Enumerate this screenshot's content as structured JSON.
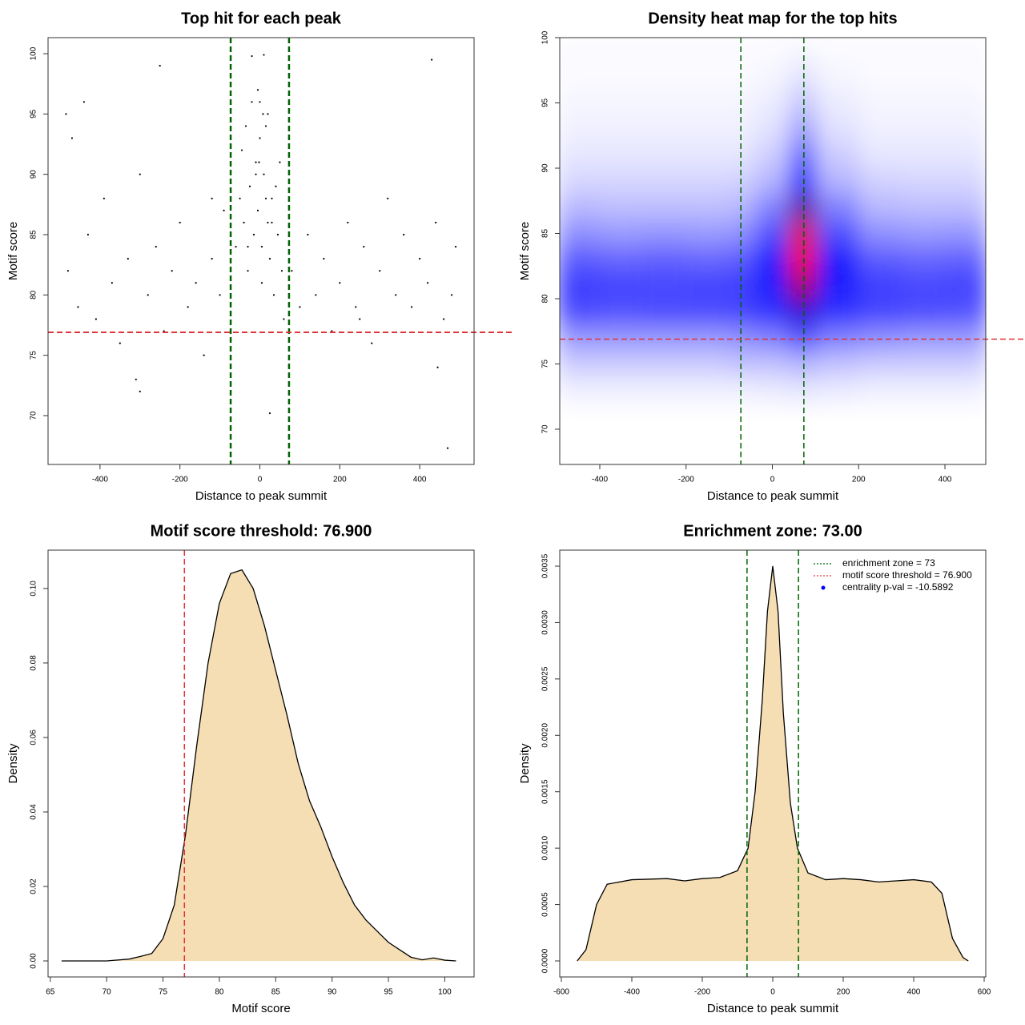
{
  "chart_data": [
    {
      "type": "scatter",
      "title": "Top hit for each peak",
      "xlabel": "Distance to peak summit",
      "ylabel": "Motif score",
      "xlim": [
        -530,
        536
      ],
      "ylim": [
        65.95,
        101.33
      ],
      "xticks": [
        -400,
        -200,
        0,
        200,
        400
      ],
      "yticks": [
        70,
        75,
        80,
        85,
        90,
        95,
        100
      ],
      "color": "#000000",
      "vlines": [
        -73,
        73
      ],
      "vline_color": "#006400",
      "hlines": [
        76.9
      ],
      "hline_color": "#e0333a",
      "x": [
        -480,
        -455,
        -430,
        -410,
        -390,
        -370,
        -350,
        -330,
        -300,
        -280,
        -260,
        -240,
        -220,
        -200,
        -180,
        -160,
        -140,
        -120,
        -100,
        -90,
        -60,
        -50,
        -45,
        -40,
        -35,
        -30,
        -25,
        -20,
        -15,
        -10,
        -5,
        0,
        5,
        10,
        15,
        20,
        25,
        30,
        35,
        40,
        45,
        50,
        55,
        60,
        -20,
        10,
        -5,
        15,
        0,
        -10,
        20,
        -30,
        30,
        5,
        80,
        100,
        120,
        140,
        160,
        180,
        200,
        220,
        240,
        260,
        280,
        300,
        320,
        340,
        360,
        380,
        400,
        420,
        440,
        460,
        480,
        490,
        -485,
        -470,
        -300,
        -250,
        430,
        445,
        -310,
        25,
        -2,
        8,
        -440,
        -120,
        250,
        470
      ],
      "y": [
        82,
        79,
        85,
        78,
        88,
        81,
        76,
        83,
        90,
        80,
        84,
        77,
        82,
        86,
        79,
        81,
        75,
        83,
        80,
        87,
        84,
        88,
        92,
        86,
        94,
        82,
        89,
        96,
        85,
        91,
        87,
        93,
        84,
        90,
        88,
        95,
        83,
        86,
        80,
        89,
        85,
        91,
        82,
        78,
        99.8,
        99.9,
        97,
        94,
        96,
        90,
        86,
        84,
        88,
        81,
        82,
        79,
        85,
        80,
        83,
        77,
        81,
        86,
        79,
        84,
        76,
        82,
        88,
        80,
        85,
        79,
        83,
        81,
        86,
        78,
        80,
        84,
        95,
        93,
        72,
        99,
        99.5,
        74,
        73,
        70.2,
        91,
        95,
        96,
        88,
        78,
        67.3
      ]
    },
    {
      "type": "heatmap",
      "title": "Density heat map for the top hits",
      "xlabel": "Distance to peak summit",
      "ylabel": "Motif score",
      "xlim": [
        -492.8,
        494.6
      ],
      "ylim": [
        67.3,
        100
      ],
      "xticks": [
        -400,
        -200,
        0,
        200,
        400
      ],
      "yticks": [
        70,
        75,
        80,
        85,
        90,
        95,
        100
      ],
      "vlines": [
        -73,
        73
      ],
      "vline_color": "#006400",
      "hlines": [
        76.9
      ],
      "hline_color": "#e0333a",
      "colormap": [
        "#ffffff",
        "#0000ff",
        "#ff0000"
      ],
      "zlim": [
        0,
        1
      ],
      "xbins": [
        -500,
        -400,
        -300,
        -200,
        -100,
        -40,
        40,
        100,
        200,
        300,
        400,
        500
      ],
      "ybins": [
        72,
        74,
        76,
        78,
        80,
        82,
        84,
        86,
        88,
        90,
        92,
        94,
        96,
        98,
        100
      ],
      "z": [
        [
          0.03,
          0.03,
          0.03,
          0.03,
          0.03,
          0.04,
          0.05,
          0.04,
          0.03,
          0.03,
          0.03
        ],
        [
          0.1,
          0.1,
          0.1,
          0.1,
          0.12,
          0.12,
          0.15,
          0.12,
          0.1,
          0.1,
          0.1
        ],
        [
          0.2,
          0.2,
          0.2,
          0.2,
          0.22,
          0.25,
          0.35,
          0.25,
          0.22,
          0.2,
          0.2
        ],
        [
          0.35,
          0.34,
          0.35,
          0.35,
          0.36,
          0.4,
          0.6,
          0.4,
          0.36,
          0.35,
          0.34
        ],
        [
          0.38,
          0.37,
          0.36,
          0.37,
          0.38,
          0.45,
          0.85,
          0.45,
          0.38,
          0.36,
          0.37
        ],
        [
          0.32,
          0.3,
          0.31,
          0.3,
          0.32,
          0.45,
          1.0,
          0.45,
          0.32,
          0.3,
          0.31
        ],
        [
          0.22,
          0.2,
          0.21,
          0.2,
          0.22,
          0.35,
          0.95,
          0.35,
          0.22,
          0.2,
          0.21
        ],
        [
          0.14,
          0.13,
          0.13,
          0.13,
          0.14,
          0.25,
          0.7,
          0.25,
          0.14,
          0.13,
          0.13
        ],
        [
          0.08,
          0.08,
          0.08,
          0.08,
          0.09,
          0.15,
          0.5,
          0.15,
          0.09,
          0.08,
          0.08
        ],
        [
          0.05,
          0.05,
          0.05,
          0.05,
          0.05,
          0.1,
          0.32,
          0.1,
          0.05,
          0.05,
          0.05
        ],
        [
          0.03,
          0.03,
          0.03,
          0.03,
          0.03,
          0.06,
          0.2,
          0.06,
          0.03,
          0.03,
          0.03
        ],
        [
          0.02,
          0.02,
          0.02,
          0.02,
          0.02,
          0.04,
          0.12,
          0.04,
          0.02,
          0.02,
          0.02
        ],
        [
          0.01,
          0.01,
          0.01,
          0.01,
          0.01,
          0.02,
          0.06,
          0.02,
          0.01,
          0.01,
          0.01
        ],
        [
          0.01,
          0.01,
          0.01,
          0.01,
          0.01,
          0.01,
          0.02,
          0.01,
          0.01,
          0.01,
          0.01
        ]
      ]
    },
    {
      "type": "area",
      "title": "Motif score threshold: 76.900",
      "xlabel": "Motif score",
      "ylabel": "Density",
      "xlim": [
        64.8,
        102.6
      ],
      "ylim": [
        -0.0043,
        0.1103
      ],
      "xticks": [
        65,
        70,
        75,
        80,
        85,
        90,
        95,
        100
      ],
      "yticks": [
        {
          "value": 0,
          "label": "0.00"
        },
        0.02,
        0.04,
        0.06,
        0.08,
        {
          "value": 0.1,
          "label": "0.10"
        }
      ],
      "color": "#f5deb3",
      "line_color": "#000000",
      "vlines": [
        76.9
      ],
      "vline_color": "#e0333a",
      "x": [
        66,
        70,
        72,
        73,
        74,
        75,
        76,
        77,
        78,
        79,
        80,
        81,
        82,
        83,
        84,
        85,
        86,
        87,
        88,
        89,
        90,
        91,
        92,
        93,
        94,
        95,
        96,
        97,
        98,
        99,
        100,
        101
      ],
      "y": [
        0,
        0,
        0.0005,
        0.0012,
        0.002,
        0.006,
        0.015,
        0.034,
        0.058,
        0.08,
        0.096,
        0.104,
        0.105,
        0.1,
        0.09,
        0.078,
        0.066,
        0.053,
        0.043,
        0.036,
        0.028,
        0.021,
        0.015,
        0.011,
        0.008,
        0.005,
        0.003,
        0.001,
        0.0003,
        0.0008,
        0.0002,
        0
      ]
    },
    {
      "type": "area",
      "title": "Enrichment zone: 73.00",
      "xlabel": "Distance to peak summit",
      "ylabel": "Density",
      "xlim": [
        -604.5,
        604.5
      ],
      "ylim": [
        -0.000142,
        0.003642
      ],
      "xticks": [
        -600,
        -400,
        -200,
        0,
        200,
        400,
        600
      ],
      "yticks": [
        {
          "value": 0,
          "label": "0.0000"
        },
        0.0005,
        {
          "value": 0.001,
          "label": "0.0010"
        },
        0.0015,
        {
          "value": 0.002,
          "label": "0.0020"
        },
        0.0025,
        {
          "value": 0.003,
          "label": "0.0030"
        },
        0.0035
      ],
      "color": "#f5deb3",
      "line_color": "#000000",
      "vlines": [
        -73,
        73
      ],
      "vline_color": "#006400",
      "x": [
        -555,
        -530,
        -500,
        -470,
        -400,
        -300,
        -250,
        -200,
        -150,
        -100,
        -70,
        -50,
        -30,
        -15,
        0,
        15,
        30,
        50,
        70,
        100,
        150,
        200,
        250,
        300,
        350,
        400,
        450,
        480,
        510,
        540,
        555
      ],
      "y": [
        0,
        0.0001,
        0.0005,
        0.00068,
        0.00072,
        0.00073,
        0.00071,
        0.00073,
        0.00074,
        0.0008,
        0.001,
        0.0015,
        0.0023,
        0.0031,
        0.0035,
        0.0031,
        0.0022,
        0.0014,
        0.001,
        0.00078,
        0.00072,
        0.00073,
        0.00072,
        0.0007,
        0.00071,
        0.00072,
        0.0007,
        0.0006,
        0.0002,
        3e-05,
        0
      ],
      "legend_position": "top-right",
      "legend": [
        {
          "label": "enrichment zone = 73",
          "color": "#006400",
          "symbol": "dotted"
        },
        {
          "label": "motif score threshold = 76.900",
          "color": "#e0333a",
          "symbol": "dotted"
        },
        {
          "label": "centrality p-val = -10.5892",
          "color": "#0000ff",
          "symbol": "point"
        }
      ]
    }
  ]
}
